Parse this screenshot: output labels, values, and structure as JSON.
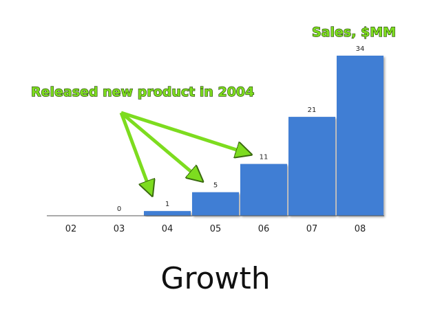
{
  "chart_data": {
    "type": "bar",
    "title": "Growth",
    "series_label": "Sales, $MM",
    "annotation": "Released new product in 2004",
    "categories": [
      "02",
      "03",
      "04",
      "05",
      "06",
      "07",
      "08"
    ],
    "values": [
      null,
      0,
      1,
      5,
      11,
      21,
      34
    ],
    "color": "#3f7ed4",
    "ylim": [
      0,
      34
    ]
  }
}
